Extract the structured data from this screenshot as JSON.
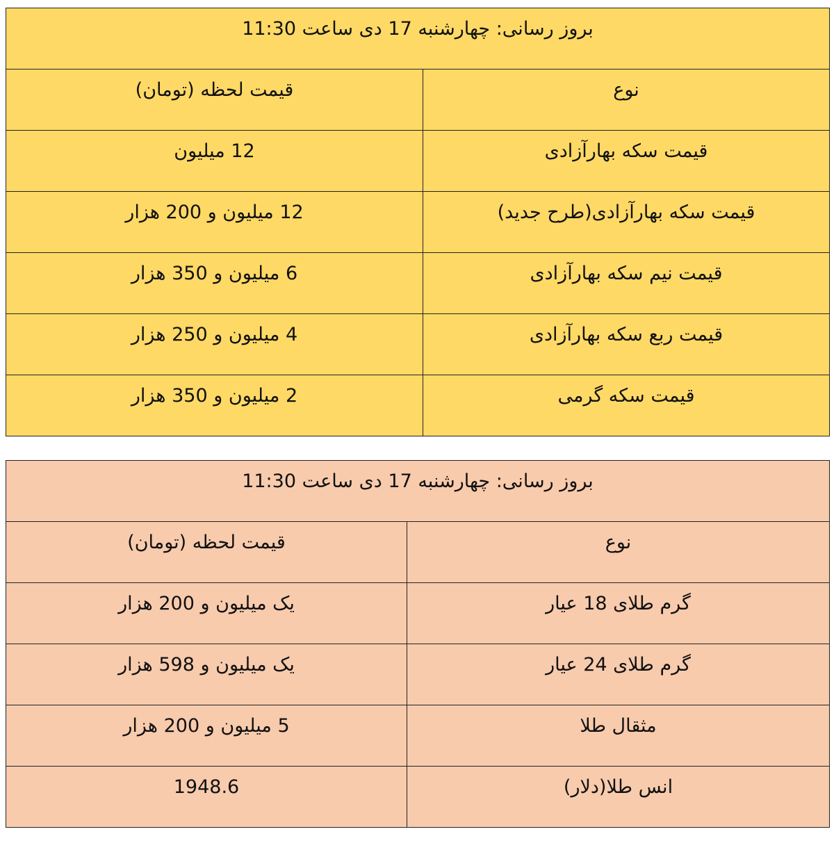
{
  "coins_table": {
    "background": "#FFD966",
    "title": "بروز رسانی: چهارشنبه 17 دی ساعت 11:30",
    "headers": {
      "type": "نوع",
      "price": "قیمت لحظه (تومان)"
    },
    "rows": [
      {
        "type": "قیمت سکه بهارآزادی",
        "price": "12 میلیون"
      },
      {
        "type": "قیمت سکه بهارآزادی(طرح جدید)",
        "price": "12  میلیون و 200 هزار"
      },
      {
        "type": "قیمت نیم سکه بهارآزادی",
        "price": "6 میلیون و 350 هزار"
      },
      {
        "type": "قیمت ربع سکه بهارآزادی",
        "price": "4 میلیون و 250  هزار"
      },
      {
        "type": "قیمت سکه گرمی",
        "price": "2 میلیون و 350 هزار"
      }
    ]
  },
  "gold_table": {
    "background": "#F8CBAD",
    "title": "بروز رسانی: چهارشنبه 17 دی ساعت 11:30",
    "headers": {
      "type": "نوع",
      "price": "قیمت لحظه (تومان)"
    },
    "rows": [
      {
        "type": "گرم طلای 18 عیار",
        "price": "یک میلیون و 200 هزار"
      },
      {
        "type": "گرم طلای 24 عیار",
        "price": "یک میلیون و 598  هزار"
      },
      {
        "type": "مثقال طلا",
        "price": "5 میلیون و 200 هزار"
      },
      {
        "type": "انس طلا(دلار)",
        "price": "1948.6"
      }
    ]
  }
}
